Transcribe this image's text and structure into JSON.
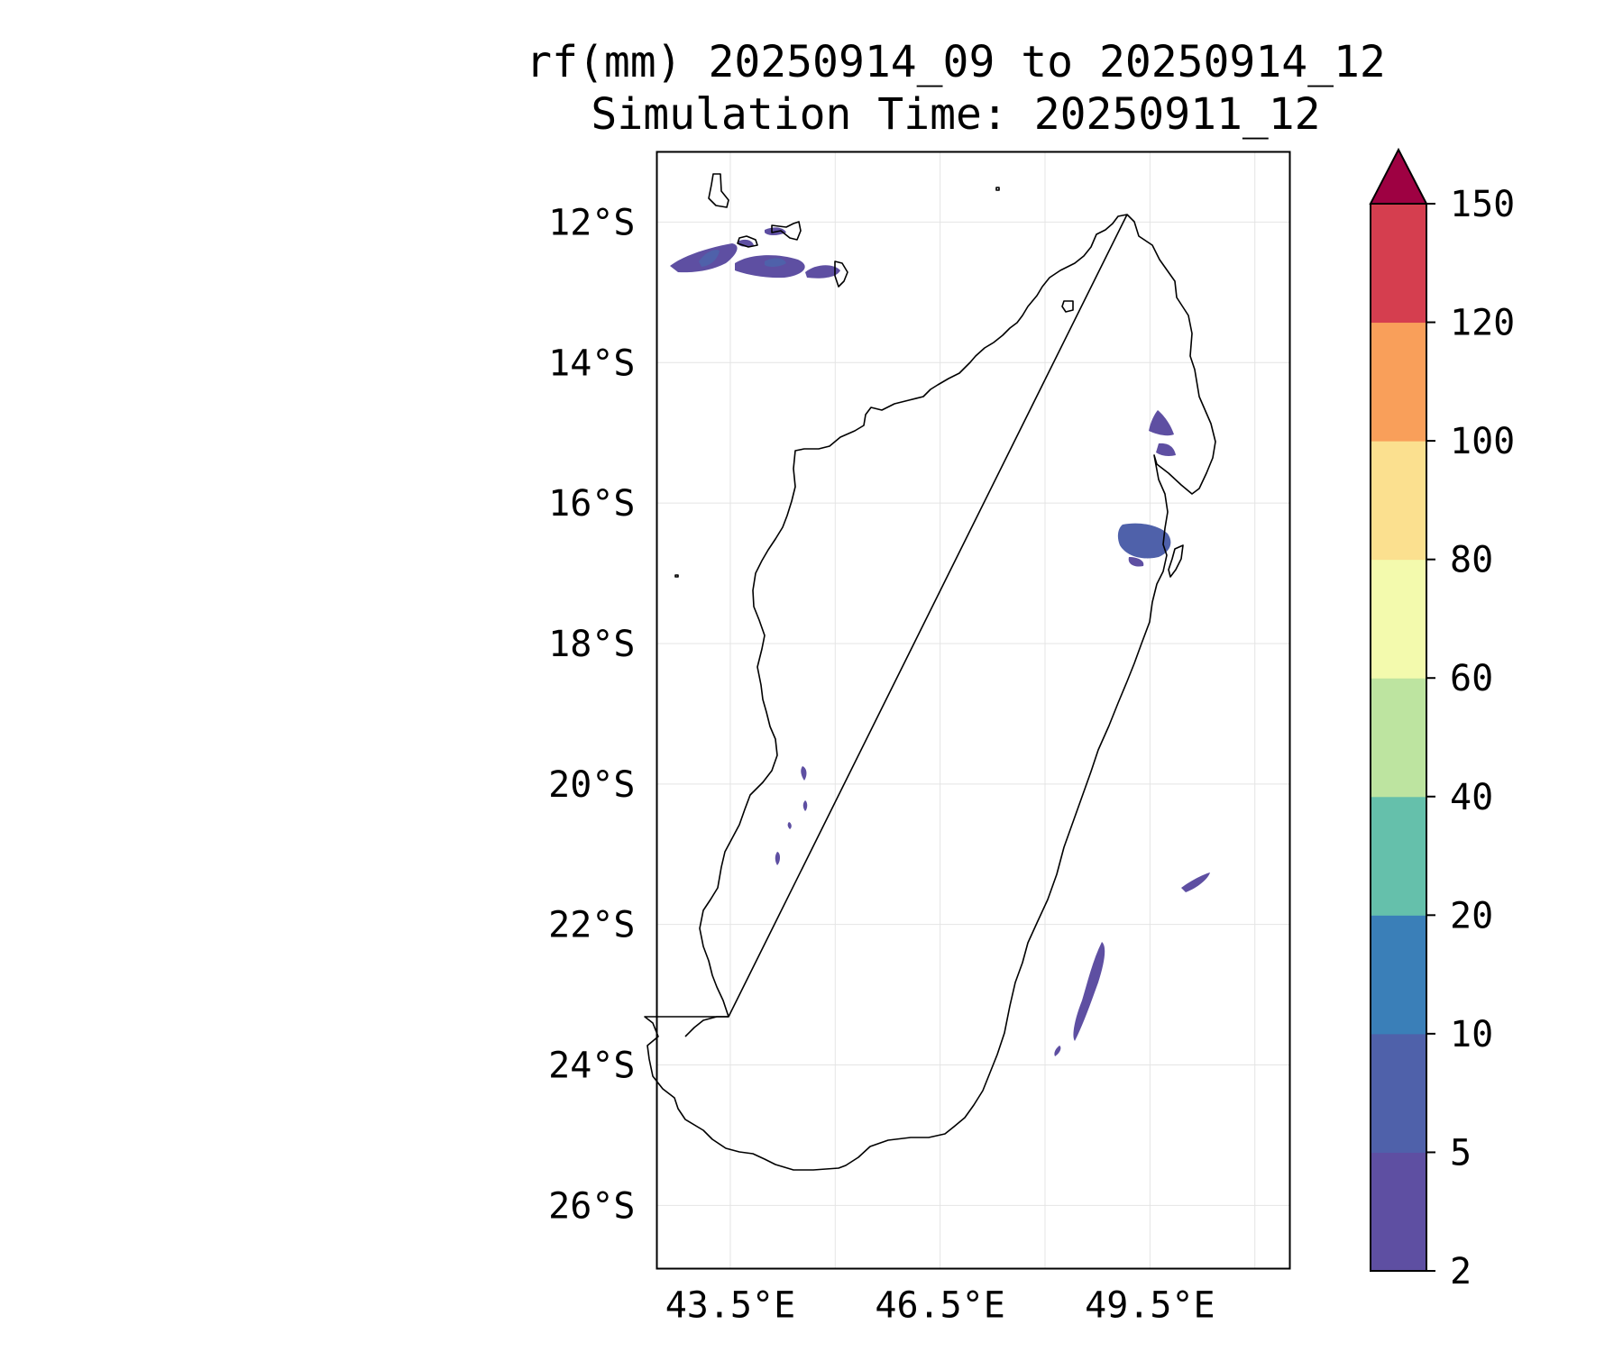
{
  "title": {
    "line1": "rf(mm) 20250914_09 to 20250914_12",
    "line2": "Simulation Time: 20250911_12"
  },
  "map": {
    "lon_range": [
      42.45,
      51.5
    ],
    "lat_range": [
      -26.9,
      -11.0
    ],
    "lat_ticks": [
      "12°S",
      "14°S",
      "16°S",
      "18°S",
      "20°S",
      "22°S",
      "24°S",
      "26°S"
    ],
    "lat_tick_values": [
      -12,
      -14,
      -16,
      -18,
      -20,
      -22,
      -24,
      -26
    ],
    "lon_ticks": [
      "43.5°E",
      "46.5°E",
      "49.5°E"
    ],
    "lon_tick_values": [
      43.5,
      46.5,
      49.5
    ],
    "grid_lon_values": [
      43.5,
      45,
      46.5,
      48,
      49.5,
      51
    ],
    "coastline_color": "#000000",
    "rain_features": [
      {
        "name": "comoros-rain",
        "level": "2-5",
        "color": "#5e4fa2"
      },
      {
        "name": "comoros-core-rain",
        "level": "5-10",
        "color": "#4a66b0"
      },
      {
        "name": "northeast-rain",
        "level": "2-5",
        "color": "#5e4fa2"
      },
      {
        "name": "east-coast-rain",
        "level": "5-10",
        "color": "#4a66b0"
      },
      {
        "name": "west-coast-rain",
        "level": "2-5",
        "color": "#5e4fa2"
      },
      {
        "name": "southeast-rain",
        "level": "2-5",
        "color": "#5e4fa2"
      },
      {
        "name": "southeast-band-rain",
        "level": "2-5",
        "color": "#5e4fa2"
      }
    ]
  },
  "colorbar": {
    "levels": [
      "2",
      "5",
      "10",
      "20",
      "40",
      "60",
      "80",
      "100",
      "120",
      "150"
    ],
    "colors": [
      "#5e4fa2",
      "#4f61aa",
      "#3a7fb8",
      "#65c0ab",
      "#bde4a0",
      "#f3faad",
      "#fbe08f",
      "#f99f5a",
      "#d53e4f"
    ],
    "extend_color": "#9e0142"
  }
}
